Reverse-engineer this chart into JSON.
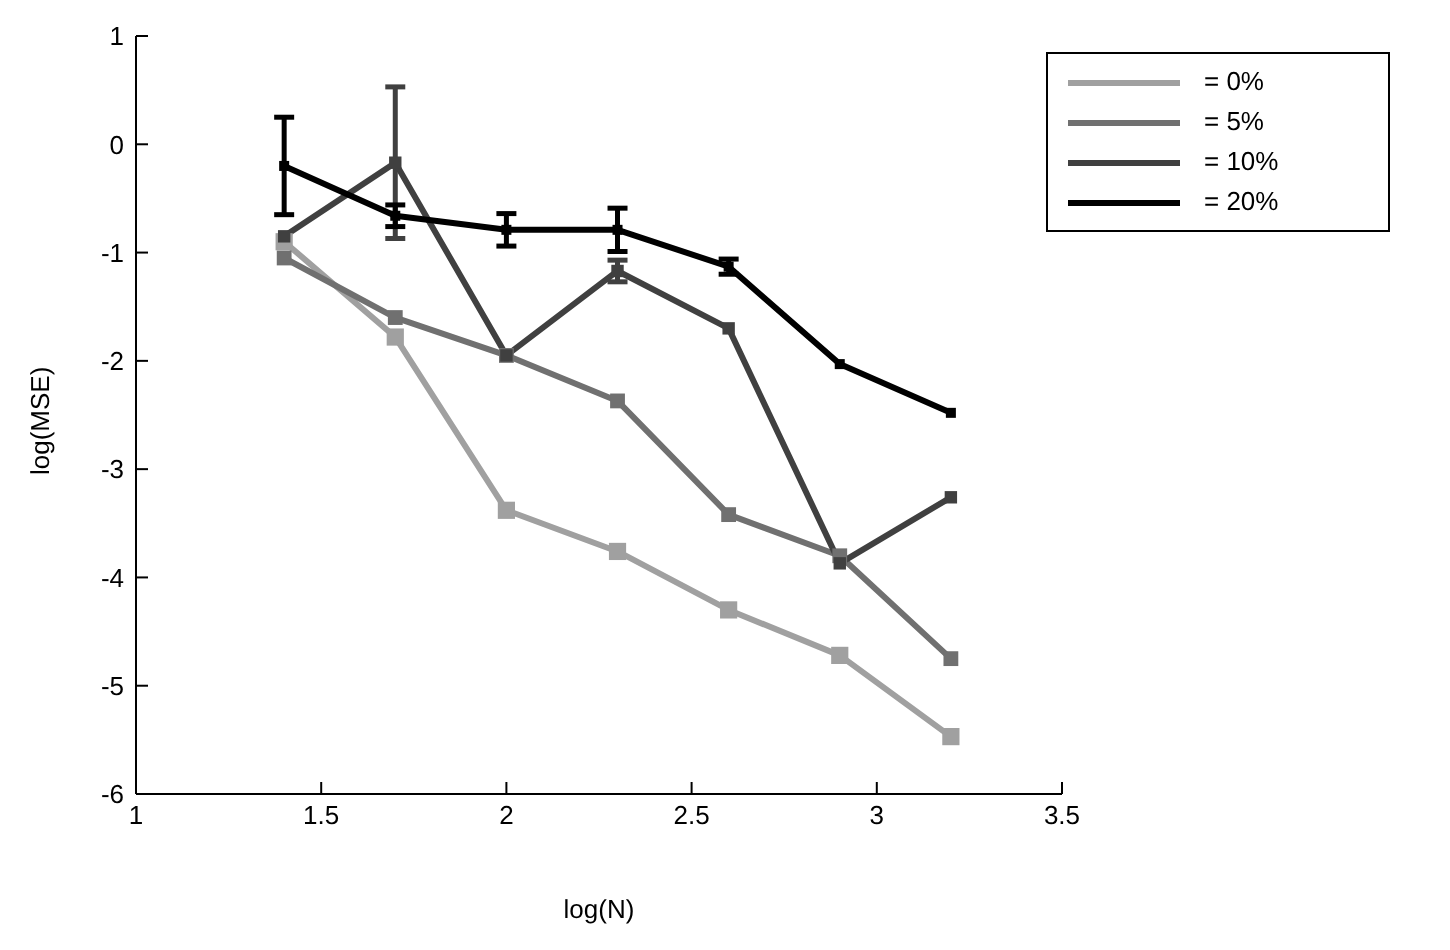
{
  "chart_data": {
    "type": "line",
    "xlabel": "log(N)",
    "ylabel": "log(MSE)",
    "x": [
      1.4,
      1.7,
      2.0,
      2.3,
      2.6,
      2.9,
      3.2
    ],
    "series": [
      {
        "name": "= 0%",
        "color": "#a0a0a0",
        "values": [
          -0.9,
          -1.78,
          -3.38,
          -3.76,
          -4.3,
          -4.72,
          -5.47
        ]
      },
      {
        "name": "= 5%",
        "color": "#707070",
        "values": [
          -1.05,
          -1.6,
          -1.95,
          -2.37,
          -3.42,
          -3.8,
          -4.75
        ]
      },
      {
        "name": "= 10%",
        "color": "#404040",
        "values": [
          -0.85,
          -0.17,
          -1.95,
          -1.17,
          -1.7,
          -3.87,
          -3.26
        ],
        "errors": [
          null,
          0.7,
          null,
          0.1,
          null,
          null,
          null
        ]
      },
      {
        "name": "= 20%",
        "color": "#000000",
        "values": [
          -0.2,
          -0.66,
          -0.79,
          -0.79,
          -1.13,
          -2.03,
          -2.48
        ],
        "errors": [
          0.45,
          0.1,
          0.15,
          0.2,
          0.07,
          null,
          null
        ]
      }
    ],
    "xlim": [
      1,
      3.5
    ],
    "xticks": [
      1,
      1.5,
      2,
      2.5,
      3,
      3.5
    ],
    "ylim": [
      -6,
      1
    ],
    "yticks": [
      -6,
      -5,
      -4,
      -3,
      -2,
      -1,
      0,
      1
    ],
    "grid": false,
    "legend": "top right",
    "marker": "square",
    "line_style": "solid"
  }
}
